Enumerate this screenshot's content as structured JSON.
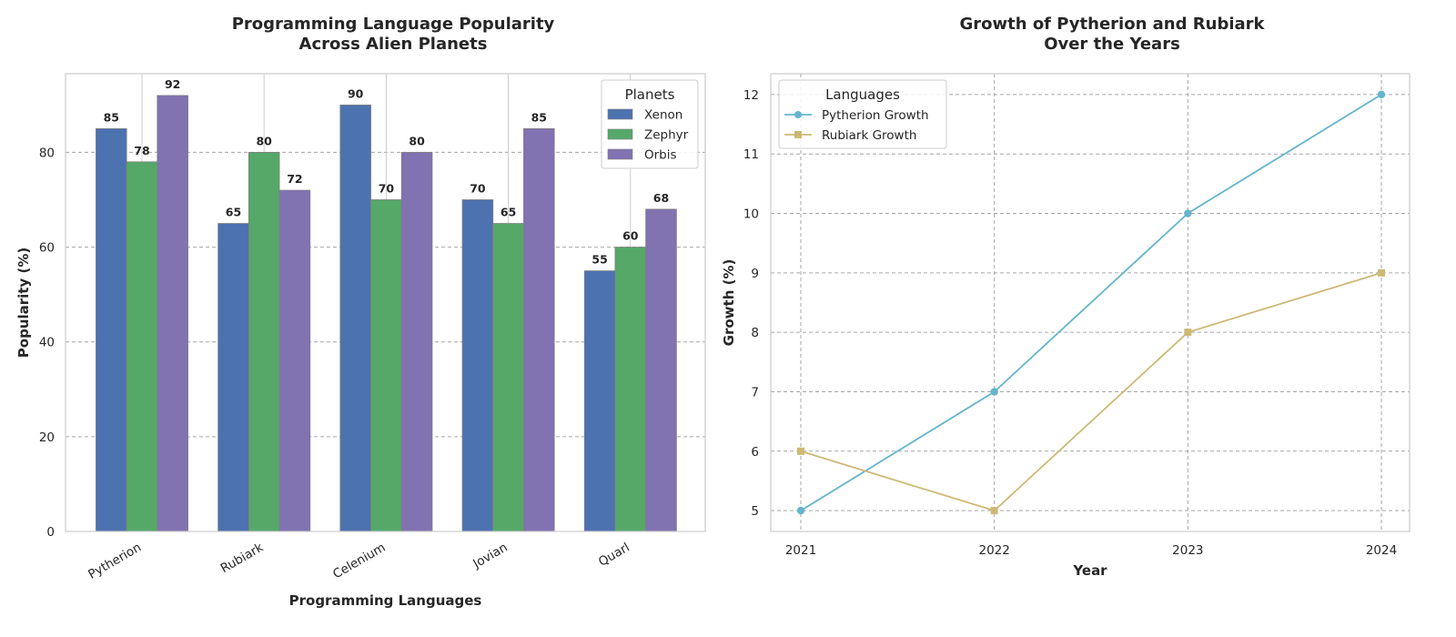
{
  "chart_data": [
    {
      "type": "bar",
      "title": "Programming Language Popularity\nAcross Alien Planets",
      "xlabel": "Programming Languages",
      "ylabel": "Popularity (%)",
      "categories": [
        "Pytherion",
        "Rubiark",
        "Celenium",
        "Jovian",
        "Quarl"
      ],
      "series": [
        {
          "name": "Xenon",
          "color": "#4c72b0",
          "values": [
            85,
            65,
            90,
            70,
            55
          ]
        },
        {
          "name": "Zephyr",
          "color": "#55a868",
          "values": [
            78,
            80,
            70,
            65,
            60
          ]
        },
        {
          "name": "Orbis",
          "color": "#8172b2",
          "values": [
            92,
            72,
            80,
            85,
            68
          ]
        }
      ],
      "ylim": [
        0,
        96.6
      ],
      "yticks": [
        0,
        20,
        40,
        60,
        80
      ],
      "grid": true,
      "legend": {
        "title": "Planets",
        "position": "top-right"
      }
    },
    {
      "type": "line",
      "title": "Growth of Pytherion and Rubiark\nOver the Years",
      "xlabel": "Year",
      "ylabel": "Growth (%)",
      "x": [
        2021,
        2022,
        2023,
        2024
      ],
      "series": [
        {
          "name": "Pytherion Growth",
          "color": "#64b5cd",
          "marker": "circle",
          "values": [
            5,
            7,
            10,
            12
          ]
        },
        {
          "name": "Rubiark Growth",
          "color": "#ccb974",
          "marker": "square",
          "values": [
            6,
            5,
            8,
            9
          ]
        }
      ],
      "ylim": [
        4.65,
        12.35
      ],
      "yticks": [
        5,
        6,
        7,
        8,
        9,
        10,
        11,
        12
      ],
      "grid": true,
      "legend": {
        "title": "Languages",
        "position": "top-left"
      }
    }
  ]
}
